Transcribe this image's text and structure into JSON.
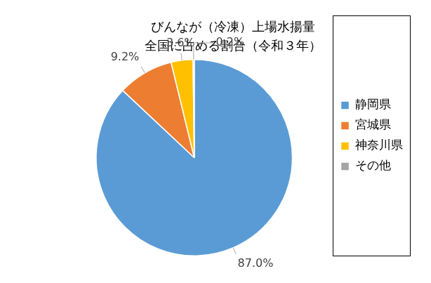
{
  "chart_data": {
    "type": "pie",
    "title": [
      "びんなが（冷凍）上場水揚量",
      "全国に占める割合（令和３年）"
    ],
    "categories": [
      "静岡県",
      "宮城県",
      "神奈川県",
      "その他"
    ],
    "values": [
      87.0,
      9.2,
      3.6,
      0.2
    ],
    "value_labels": [
      "87.0%",
      "9.2%",
      "3.6%",
      "0.2%"
    ],
    "colors": [
      "#5b9bd5",
      "#ed7d31",
      "#ffc000",
      "#a5a5a5"
    ],
    "data_labels": true,
    "legend": "right"
  }
}
